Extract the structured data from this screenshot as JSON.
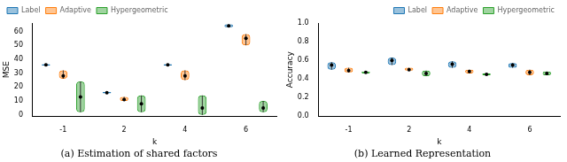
{
  "chart_data": [
    {
      "type": "violin",
      "title": "(a) Estimation of shared factors",
      "x_label": "k",
      "y_label": "MSE",
      "categories": [
        "-1",
        "2",
        "4",
        "6"
      ],
      "ylim": [
        -1,
        66
      ],
      "yticks": [
        0,
        10,
        20,
        30,
        40,
        50,
        60
      ],
      "grid": false,
      "legend": "upper left",
      "series": [
        {
          "name": "Label",
          "color": "#1f77b4",
          "min": [
            35.5,
            15.5,
            35.5,
            63
          ],
          "max": [
            36.5,
            16.5,
            36.5,
            65
          ],
          "median": [
            36,
            16,
            36,
            64
          ]
        },
        {
          "name": "Adaptive",
          "color": "#ff7f0e",
          "min": [
            26,
            10,
            25,
            50
          ],
          "max": [
            32,
            13,
            32,
            58
          ],
          "median": [
            28,
            11,
            28,
            55
          ]
        },
        {
          "name": "Hypergeometric",
          "color": "#2ca02c",
          "min": [
            2,
            2,
            0,
            2
          ],
          "max": [
            24,
            14,
            14,
            10
          ],
          "median": [
            13,
            8,
            5,
            5
          ]
        }
      ]
    },
    {
      "type": "violin",
      "title": "(b) Learned Representation",
      "x_label": "k",
      "y_label": "Accuracy",
      "categories": [
        "-1",
        "2",
        "4",
        "6"
      ],
      "ylim": [
        0,
        1
      ],
      "yticks": [
        {
          "value": 0,
          "label": "0.0"
        },
        0.2,
        0.4,
        0.6,
        0.8,
        {
          "value": 1,
          "label": "1.0"
        }
      ],
      "grid": false,
      "legend": "upper right",
      "series": [
        {
          "name": "Label",
          "color": "#1f77b4",
          "min": [
            0.5,
            0.55,
            0.52,
            0.52
          ],
          "max": [
            0.58,
            0.63,
            0.59,
            0.57
          ],
          "median": [
            0.55,
            0.6,
            0.56,
            0.55
          ]
        },
        {
          "name": "Adaptive",
          "color": "#ff7f0e",
          "min": [
            0.47,
            0.49,
            0.46,
            0.44
          ],
          "max": [
            0.52,
            0.52,
            0.5,
            0.5
          ],
          "median": [
            0.49,
            0.5,
            0.48,
            0.47
          ]
        },
        {
          "name": "Hypergeometric",
          "color": "#2ca02c",
          "min": [
            0.46,
            0.43,
            0.44,
            0.44
          ],
          "max": [
            0.48,
            0.49,
            0.46,
            0.48
          ],
          "median": [
            0.47,
            0.46,
            0.45,
            0.46
          ]
        }
      ]
    }
  ]
}
